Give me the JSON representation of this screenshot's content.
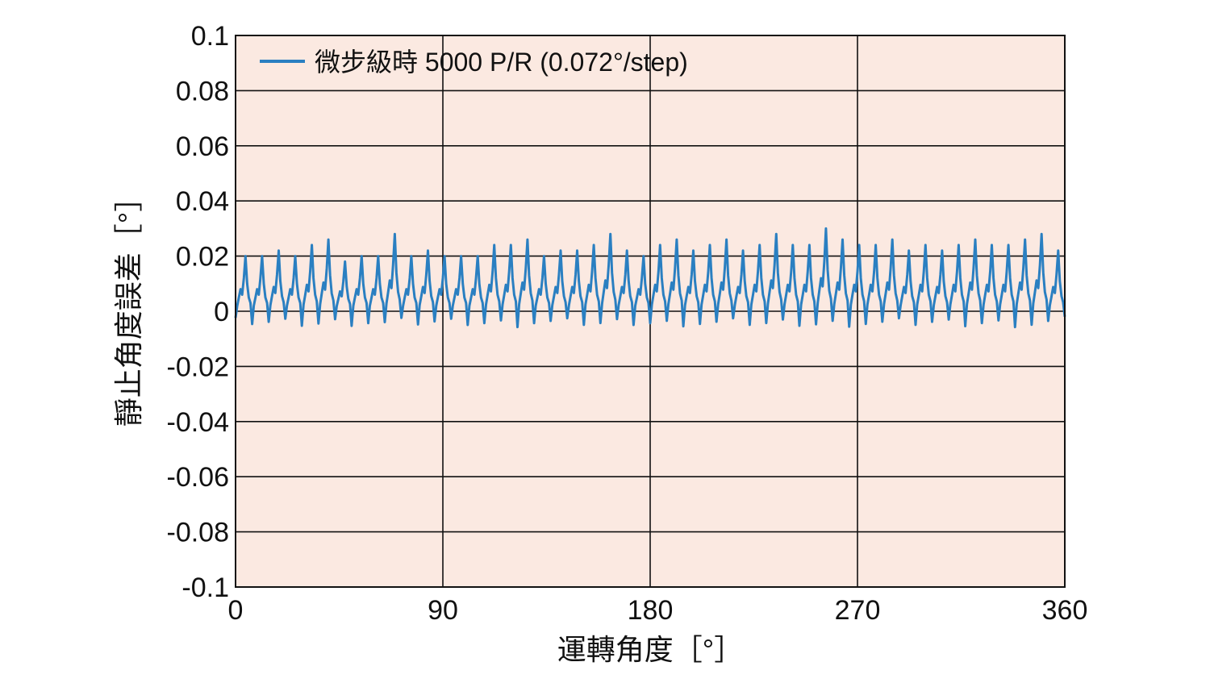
{
  "chart_data": {
    "type": "line",
    "xlabel": "運轉角度［°］",
    "ylabel": "靜止角度誤差［°］",
    "xlim": [
      0,
      360
    ],
    "ylim": [
      -0.1,
      0.1
    ],
    "xticks": [
      0,
      90,
      180,
      270,
      360
    ],
    "yticks": [
      0.1,
      0.08,
      0.06,
      0.04,
      0.02,
      0,
      -0.02,
      -0.04,
      -0.06,
      -0.08,
      -0.1
    ],
    "xtick_labels": [
      "0",
      "90",
      "180",
      "270",
      "360"
    ],
    "ytick_labels": [
      "0.1",
      "0.08",
      "0.06",
      "0.04",
      "0.02",
      "0",
      "-0.02",
      "-0.04",
      "-0.06",
      "-0.08",
      "-0.1"
    ],
    "grid": true,
    "legend_position": "top-left",
    "plot_background": "#fbe9e1",
    "grid_color": "#111111",
    "series": [
      {
        "name": "微步級時 5000 P/R (0.072°/step)",
        "color": "#2a7fc1",
        "cycle_period": 7.2,
        "cycle_pattern": [
          -0.004,
          0.002,
          0.005,
          0.008,
          0.006,
          0.012,
          0.02,
          0.01,
          0.005,
          0.003
        ],
        "cycle_amplitude": [
          1.0,
          1.0,
          1.1,
          1.0,
          1.2,
          1.3,
          0.9,
          1.0,
          1.0,
          1.4,
          1.0,
          1.1,
          1.0,
          1.0,
          1.0,
          1.2,
          1.2,
          1.3,
          1.0,
          1.1,
          1.1,
          1.2,
          1.4,
          1.1,
          1.0,
          1.2,
          1.3,
          1.1,
          1.2,
          1.3,
          1.1,
          1.2,
          1.4,
          1.2,
          1.2,
          1.5,
          1.3,
          1.2,
          1.2,
          1.3,
          1.1,
          1.2,
          1.1,
          1.2,
          1.3,
          1.2,
          1.2,
          1.3,
          1.4,
          1.1
        ]
      }
    ]
  }
}
